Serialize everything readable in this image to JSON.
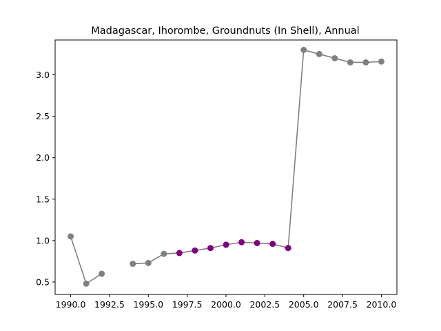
{
  "chart_data": {
    "type": "line",
    "title": "Madagascar, Ihorombe, Groundnuts (In Shell), Annual",
    "xlabel": "",
    "ylabel": "",
    "xlim": [
      1989.0,
      2011.0
    ],
    "ylim": [
      0.35,
      3.42
    ],
    "x_ticks": [
      1990.0,
      1992.5,
      1995.0,
      1997.5,
      2000.0,
      2002.5,
      2005.0,
      2007.5,
      2010.0
    ],
    "x_tick_labels": [
      "1990.0",
      "1992.5",
      "1995.0",
      "1997.5",
      "2000.0",
      "2002.5",
      "2005.0",
      "2007.5",
      "2010.0"
    ],
    "y_ticks": [
      0.5,
      1.0,
      1.5,
      2.0,
      2.5,
      3.0
    ],
    "y_tick_labels": [
      "0.5",
      "1.0",
      "1.5",
      "2.0",
      "2.5",
      "3.0"
    ],
    "grid": false,
    "line_color": "#808080",
    "marker_colors": {
      "gray": "#808080",
      "purple": "#800080"
    },
    "series": [
      {
        "x": [
          1990,
          1991,
          1992,
          1993,
          1994,
          1995,
          1996,
          1997,
          1998,
          1999,
          2000,
          2001,
          2002,
          2003,
          2004,
          2005,
          2006,
          2007,
          2008,
          2009,
          2010
        ],
        "values": [
          1.05,
          0.48,
          0.6,
          null,
          0.72,
          0.73,
          0.84,
          0.85,
          0.88,
          0.91,
          0.95,
          0.98,
          0.97,
          0.96,
          0.91,
          3.3,
          3.25,
          3.2,
          3.15,
          3.15,
          3.16
        ],
        "marker_color_keys": [
          "gray",
          "gray",
          "gray",
          "gray",
          "gray",
          "gray",
          "gray",
          "purple",
          "purple",
          "purple",
          "purple",
          "purple",
          "purple",
          "purple",
          "purple",
          "gray",
          "gray",
          "gray",
          "gray",
          "gray",
          "gray"
        ]
      }
    ]
  }
}
